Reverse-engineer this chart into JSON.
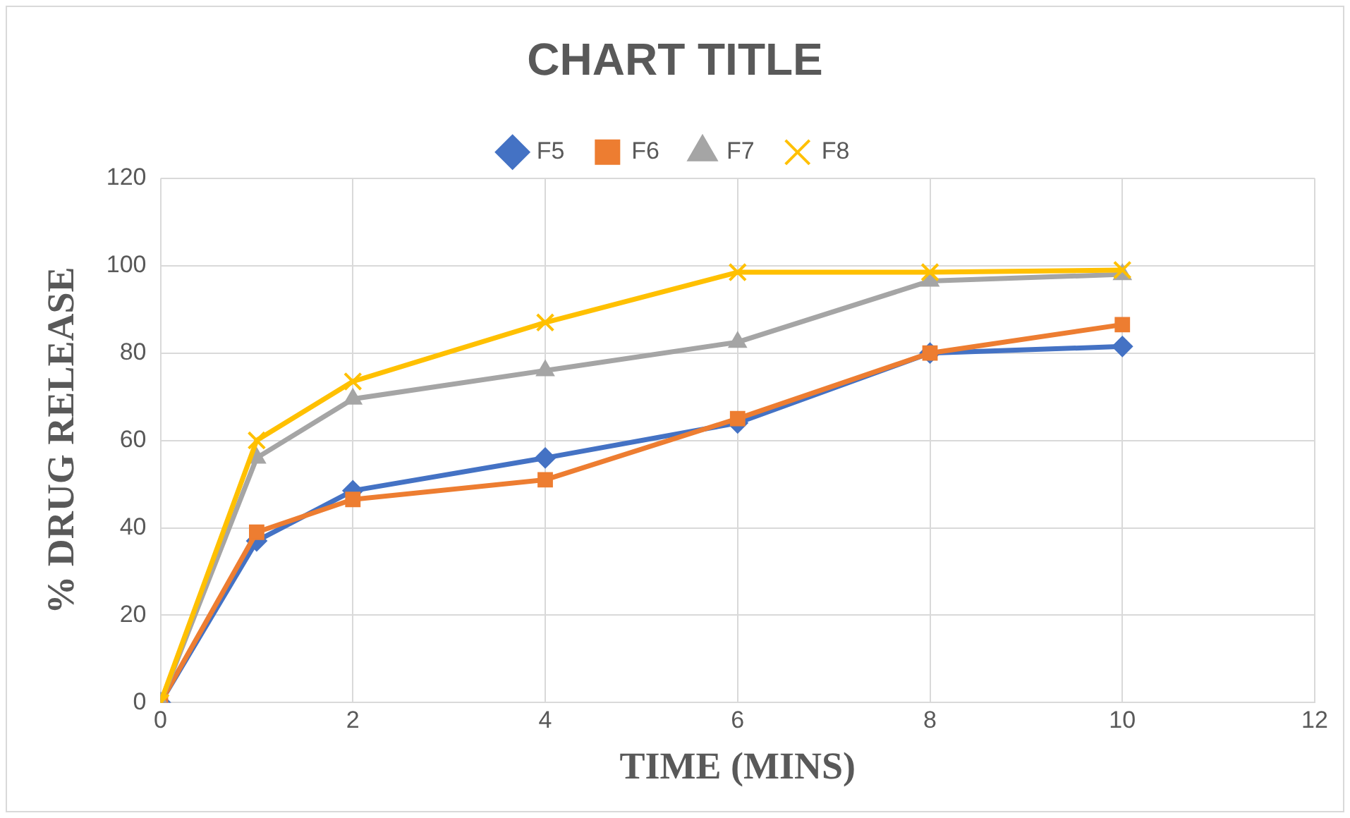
{
  "chart_data": {
    "type": "line",
    "title": "CHART TITLE",
    "xlabel": "TIME (MINS)",
    "ylabel": "% DRUG RELEASE",
    "x": [
      0,
      1,
      2,
      4,
      6,
      8,
      10
    ],
    "series": [
      {
        "name": "F5",
        "color": "#4472c4",
        "marker": "diamond",
        "values": [
          0,
          37,
          48.5,
          56,
          64,
          80,
          81.5
        ]
      },
      {
        "name": "F6",
        "color": "#ed7d31",
        "marker": "square",
        "values": [
          0,
          39,
          46.5,
          51,
          65,
          80,
          86.5
        ]
      },
      {
        "name": "F7",
        "color": "#a5a5a5",
        "marker": "triangle",
        "values": [
          0,
          56,
          69.5,
          76,
          82.5,
          96.5,
          98
        ]
      },
      {
        "name": "F8",
        "color": "#ffc000",
        "marker": "cross",
        "values": [
          0,
          60,
          73.5,
          87,
          98.5,
          98.5,
          99
        ]
      }
    ],
    "xlim": [
      0,
      12
    ],
    "xticks": [
      0,
      2,
      4,
      6,
      8,
      10,
      12
    ],
    "ylim": [
      0,
      120
    ],
    "yticks": [
      0,
      20,
      40,
      60,
      80,
      100,
      120
    ],
    "grid": true,
    "legend": "top",
    "line_style": "solid"
  }
}
